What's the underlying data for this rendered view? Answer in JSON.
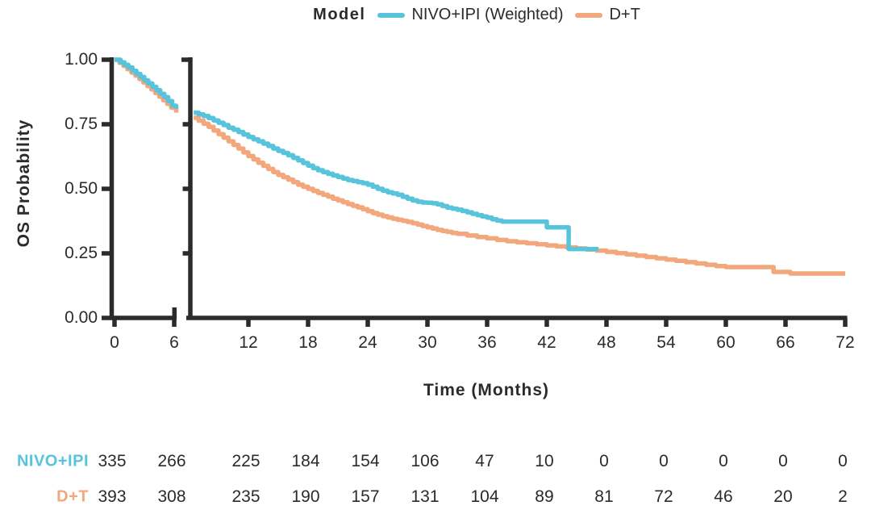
{
  "colors": {
    "background": "#ffffff",
    "axis": "#2b2b2b",
    "text": "#2b2b2b",
    "nivo_ipi": "#58c4db",
    "dt": "#f2a77c"
  },
  "legend": {
    "title": "Model",
    "items": [
      {
        "label": "NIVO+IPI (Weighted)",
        "color": "#58c4db"
      },
      {
        "label": "D+T",
        "color": "#f2a77c"
      }
    ]
  },
  "chart_data": {
    "type": "line",
    "subtype": "kaplan-meier-step",
    "title": "",
    "xlabel": "Time (Months)",
    "ylabel": "OS Probability",
    "xlim": [
      0,
      72
    ],
    "ylim": [
      0.0,
      1.0
    ],
    "grid": false,
    "legend_position": "top",
    "axis_break": {
      "panel1_domain": [
        0,
        6
      ],
      "panel2_domain": [
        6.5,
        72
      ]
    },
    "x_ticks": [
      0,
      6,
      12,
      18,
      24,
      30,
      36,
      42,
      48,
      54,
      60,
      66,
      72
    ],
    "y_ticks": [
      {
        "value": 1.0,
        "label": "1.00"
      },
      {
        "value": 0.75,
        "label": "0.75"
      },
      {
        "value": 0.5,
        "label": "0.50"
      },
      {
        "value": 0.25,
        "label": "0.25"
      },
      {
        "value": 0.0,
        "label": "0.00"
      }
    ],
    "series": [
      {
        "name": "NIVO+IPI (Weighted)",
        "color": "#58c4db",
        "points": [
          [
            0,
            1.0
          ],
          [
            0.6,
            0.99
          ],
          [
            1,
            0.98
          ],
          [
            1.4,
            0.97
          ],
          [
            1.8,
            0.957
          ],
          [
            2.2,
            0.945
          ],
          [
            2.6,
            0.933
          ],
          [
            3,
            0.92
          ],
          [
            3.4,
            0.908
          ],
          [
            3.8,
            0.895
          ],
          [
            4.2,
            0.882
          ],
          [
            4.6,
            0.868
          ],
          [
            5,
            0.855
          ],
          [
            5.4,
            0.84
          ],
          [
            5.8,
            0.822
          ],
          [
            6.2,
            0.81
          ],
          [
            6.5,
            0.795
          ],
          [
            7,
            0.788
          ],
          [
            7.5,
            0.782
          ],
          [
            8,
            0.774
          ],
          [
            8.5,
            0.765
          ],
          [
            9,
            0.756
          ],
          [
            9.5,
            0.747
          ],
          [
            10,
            0.737
          ],
          [
            10.5,
            0.729
          ],
          [
            11,
            0.72
          ],
          [
            11.5,
            0.71
          ],
          [
            12,
            0.701
          ],
          [
            12.5,
            0.692
          ],
          [
            13,
            0.684
          ],
          [
            13.5,
            0.675
          ],
          [
            14,
            0.666
          ],
          [
            14.5,
            0.656
          ],
          [
            15,
            0.647
          ],
          [
            15.5,
            0.639
          ],
          [
            16,
            0.63
          ],
          [
            16.5,
            0.62
          ],
          [
            17,
            0.61
          ],
          [
            17.5,
            0.6
          ],
          [
            18,
            0.59
          ],
          [
            18.5,
            0.58
          ],
          [
            19,
            0.572
          ],
          [
            19.5,
            0.565
          ],
          [
            20,
            0.558
          ],
          [
            20.5,
            0.552
          ],
          [
            21,
            0.546
          ],
          [
            21.5,
            0.54
          ],
          [
            22,
            0.534
          ],
          [
            22.5,
            0.53
          ],
          [
            23,
            0.526
          ],
          [
            23.5,
            0.522
          ],
          [
            24,
            0.516
          ],
          [
            24.5,
            0.508
          ],
          [
            25,
            0.5
          ],
          [
            25.5,
            0.493
          ],
          [
            26,
            0.487
          ],
          [
            26.5,
            0.482
          ],
          [
            27,
            0.477
          ],
          [
            27.5,
            0.469
          ],
          [
            28,
            0.462
          ],
          [
            28.5,
            0.455
          ],
          [
            29,
            0.45
          ],
          [
            29.5,
            0.447
          ],
          [
            30,
            0.446
          ],
          [
            30.5,
            0.444
          ],
          [
            31,
            0.44
          ],
          [
            31.5,
            0.433
          ],
          [
            32,
            0.427
          ],
          [
            32.5,
            0.423
          ],
          [
            33,
            0.419
          ],
          [
            33.5,
            0.414
          ],
          [
            34,
            0.409
          ],
          [
            34.5,
            0.403
          ],
          [
            35,
            0.398
          ],
          [
            35.5,
            0.393
          ],
          [
            36,
            0.388
          ],
          [
            36.5,
            0.382
          ],
          [
            37,
            0.377
          ],
          [
            37.5,
            0.373
          ],
          [
            42,
            0.351
          ],
          [
            44.2,
            0.267
          ],
          [
            47.2,
            0.267
          ]
        ]
      },
      {
        "name": "D+T",
        "color": "#f2a77c",
        "points": [
          [
            0,
            1.0
          ],
          [
            0.5,
            0.988
          ],
          [
            0.9,
            0.976
          ],
          [
            1.3,
            0.963
          ],
          [
            1.7,
            0.95
          ],
          [
            2.1,
            0.938
          ],
          [
            2.5,
            0.925
          ],
          [
            2.9,
            0.912
          ],
          [
            3.3,
            0.898
          ],
          [
            3.7,
            0.885
          ],
          [
            4.1,
            0.871
          ],
          [
            4.5,
            0.857
          ],
          [
            4.9,
            0.843
          ],
          [
            5.3,
            0.829
          ],
          [
            5.7,
            0.814
          ],
          [
            6.2,
            0.795
          ],
          [
            6.5,
            0.775
          ],
          [
            7,
            0.764
          ],
          [
            7.5,
            0.752
          ],
          [
            8,
            0.74
          ],
          [
            8.5,
            0.726
          ],
          [
            9,
            0.712
          ],
          [
            9.5,
            0.698
          ],
          [
            10,
            0.684
          ],
          [
            10.5,
            0.67
          ],
          [
            11,
            0.656
          ],
          [
            11.5,
            0.641
          ],
          [
            12,
            0.627
          ],
          [
            12.5,
            0.614
          ],
          [
            13,
            0.601
          ],
          [
            13.5,
            0.589
          ],
          [
            14,
            0.577
          ],
          [
            14.5,
            0.565
          ],
          [
            15,
            0.554
          ],
          [
            15.5,
            0.545
          ],
          [
            16,
            0.536
          ],
          [
            16.5,
            0.526
          ],
          [
            17,
            0.516
          ],
          [
            17.5,
            0.508
          ],
          [
            18,
            0.5
          ],
          [
            18.5,
            0.492
          ],
          [
            19,
            0.484
          ],
          [
            19.5,
            0.477
          ],
          [
            20,
            0.47
          ],
          [
            20.5,
            0.462
          ],
          [
            21,
            0.455
          ],
          [
            21.5,
            0.448
          ],
          [
            22,
            0.441
          ],
          [
            22.5,
            0.434
          ],
          [
            23,
            0.428
          ],
          [
            23.5,
            0.421
          ],
          [
            24,
            0.413
          ],
          [
            24.5,
            0.406
          ],
          [
            25,
            0.4
          ],
          [
            25.5,
            0.394
          ],
          [
            26,
            0.389
          ],
          [
            26.5,
            0.384
          ],
          [
            27,
            0.38
          ],
          [
            27.5,
            0.376
          ],
          [
            28,
            0.372
          ],
          [
            28.5,
            0.367
          ],
          [
            29,
            0.362
          ],
          [
            29.5,
            0.356
          ],
          [
            30,
            0.351
          ],
          [
            30.5,
            0.346
          ],
          [
            31,
            0.341
          ],
          [
            31.5,
            0.337
          ],
          [
            32,
            0.333
          ],
          [
            32.5,
            0.329
          ],
          [
            33,
            0.326
          ],
          [
            34,
            0.319
          ],
          [
            35,
            0.313
          ],
          [
            36,
            0.308
          ],
          [
            37,
            0.302
          ],
          [
            38,
            0.297
          ],
          [
            39,
            0.293
          ],
          [
            40,
            0.289
          ],
          [
            41,
            0.285
          ],
          [
            42,
            0.281
          ],
          [
            43,
            0.277
          ],
          [
            44,
            0.273
          ],
          [
            45,
            0.269
          ],
          [
            46,
            0.265
          ],
          [
            47,
            0.261
          ],
          [
            48,
            0.256
          ],
          [
            49,
            0.251
          ],
          [
            50,
            0.246
          ],
          [
            51,
            0.241
          ],
          [
            52,
            0.236
          ],
          [
            53,
            0.231
          ],
          [
            54,
            0.226
          ],
          [
            55,
            0.221
          ],
          [
            56,
            0.216
          ],
          [
            57,
            0.211
          ],
          [
            58,
            0.206
          ],
          [
            59,
            0.201
          ],
          [
            60,
            0.197
          ],
          [
            64.8,
            0.178
          ],
          [
            66.5,
            0.172
          ],
          [
            72,
            0.172
          ]
        ]
      }
    ]
  },
  "risk_table": {
    "times": [
      0,
      6,
      12,
      18,
      24,
      30,
      36,
      42,
      48,
      54,
      60,
      66,
      72
    ],
    "rows": [
      {
        "name": "NIVO+IPI",
        "color": "#58c4db",
        "values": [
          335,
          266,
          225,
          184,
          154,
          106,
          47,
          10,
          0,
          0,
          0,
          0,
          0
        ]
      },
      {
        "name": "D+T",
        "color": "#f2a77c",
        "values": [
          393,
          308,
          235,
          190,
          157,
          131,
          104,
          89,
          81,
          72,
          46,
          20,
          2
        ]
      }
    ]
  }
}
